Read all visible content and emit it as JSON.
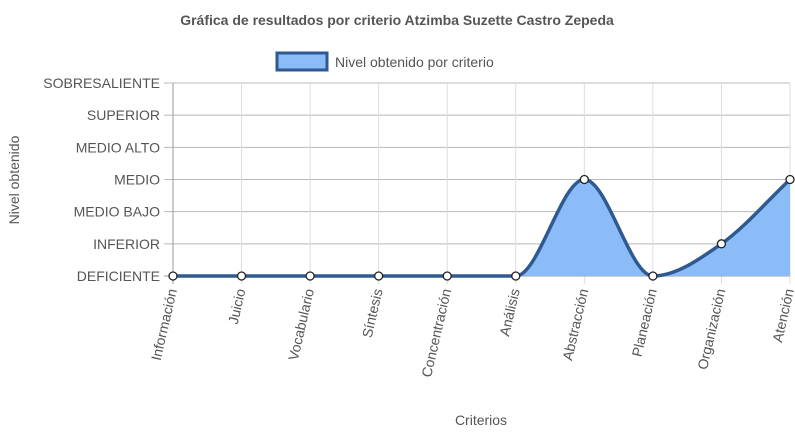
{
  "chart_data": {
    "type": "area",
    "title": "Gráfica de resultados por criterio Atzimba Suzette Castro Zepeda",
    "xlabel": "Criterios",
    "ylabel": "Nivel obtenido",
    "categories": [
      "Información",
      "Juicio",
      "Vocabulario",
      "Síntesis",
      "Concentración",
      "Análisis",
      "Abstracción",
      "Planeación",
      "Organización",
      "Atención"
    ],
    "y_levels": [
      "DEFICIENTE",
      "INFERIOR",
      "MEDIO BAJO",
      "MEDIO",
      "MEDIO ALTO",
      "SUPERIOR",
      "SOBRESALIENTE"
    ],
    "ylim": [
      0,
      6
    ],
    "series": [
      {
        "name": "Nivel obtenido por criterio",
        "values": [
          0,
          0,
          0,
          0,
          0,
          0,
          3,
          0,
          1,
          3
        ],
        "line_color": "#2f5a91",
        "fill_color": "#8bbcf7"
      }
    ],
    "grid": true,
    "legend": "top-center"
  }
}
